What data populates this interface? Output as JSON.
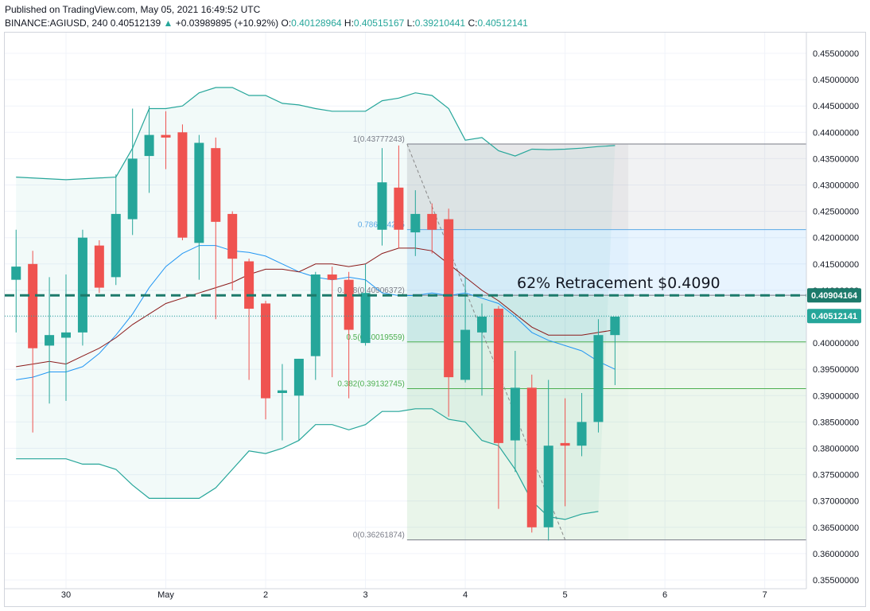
{
  "header": {
    "published": "Published on TradingView.com, May 05, 2021 16:49:52 UTC",
    "symbol": "BINANCE:AGIUSD, 240",
    "last": "0.40512139",
    "arrow": "▲",
    "change": "+0.03989895 (+10.92%)",
    "o_label": "O:",
    "o_value": "0.40128964",
    "h_label": "H:",
    "h_value": "0.40515167",
    "l_label": "L:",
    "l_value": "0.39210441",
    "c_label": "C:",
    "c_value": "0.40512141"
  },
  "chart_data": {
    "type": "candlestick",
    "title": "BINANCE:AGIUSD, 240",
    "x_ticks": [
      {
        "label": "30",
        "t": 0
      },
      {
        "label": "May",
        "t": 6
      },
      {
        "label": "2",
        "t": 12
      },
      {
        "label": "3",
        "t": 18
      },
      {
        "label": "4",
        "t": 24
      },
      {
        "label": "5",
        "t": 30
      },
      {
        "label": "6",
        "t": 36
      },
      {
        "label": "7",
        "t": 42
      }
    ],
    "y_ticks": [
      "0.45500000",
      "0.45000000",
      "0.44500000",
      "0.44000000",
      "0.43500000",
      "0.43000000",
      "0.42500000",
      "0.42000000",
      "0.41500000",
      "0.41000000",
      "0.40500000",
      "0.40000000",
      "0.39500000",
      "0.39000000",
      "0.38500000",
      "0.38000000",
      "0.37500000",
      "0.37000000",
      "0.36500000",
      "0.36000000",
      "0.35500000"
    ],
    "ylim": [
      0.3535,
      0.4575
    ],
    "candles": [
      {
        "t": -3,
        "o": 0.412,
        "h": 0.4215,
        "l": 0.402,
        "c": 0.4145
      },
      {
        "t": -2,
        "o": 0.415,
        "h": 0.4175,
        "l": 0.383,
        "c": 0.399
      },
      {
        "t": -1,
        "o": 0.3995,
        "h": 0.4125,
        "l": 0.3885,
        "c": 0.4015
      },
      {
        "t": 0,
        "o": 0.401,
        "h": 0.413,
        "l": 0.389,
        "c": 0.402
      },
      {
        "t": 1,
        "o": 0.402,
        "h": 0.4215,
        "l": 0.3995,
        "c": 0.42
      },
      {
        "t": 2,
        "o": 0.4185,
        "h": 0.4195,
        "l": 0.4095,
        "c": 0.4105
      },
      {
        "t": 3,
        "o": 0.4125,
        "h": 0.432,
        "l": 0.411,
        "c": 0.4245
      },
      {
        "t": 4,
        "o": 0.4235,
        "h": 0.4445,
        "l": 0.4205,
        "c": 0.435
      },
      {
        "t": 5,
        "o": 0.4355,
        "h": 0.445,
        "l": 0.4285,
        "c": 0.4395
      },
      {
        "t": 6,
        "o": 0.4395,
        "h": 0.444,
        "l": 0.433,
        "c": 0.439
      },
      {
        "t": 7,
        "o": 0.44,
        "h": 0.4415,
        "l": 0.4195,
        "c": 0.42
      },
      {
        "t": 8,
        "o": 0.419,
        "h": 0.4395,
        "l": 0.412,
        "c": 0.438
      },
      {
        "t": 9,
        "o": 0.437,
        "h": 0.439,
        "l": 0.4045,
        "c": 0.423
      },
      {
        "t": 10,
        "o": 0.4245,
        "h": 0.425,
        "l": 0.41,
        "c": 0.416
      },
      {
        "t": 11,
        "o": 0.4155,
        "h": 0.416,
        "l": 0.393,
        "c": 0.4065
      },
      {
        "t": 12,
        "o": 0.4075,
        "h": 0.408,
        "l": 0.3855,
        "c": 0.3895
      },
      {
        "t": 13,
        "o": 0.3905,
        "h": 0.396,
        "l": 0.3815,
        "c": 0.391
      },
      {
        "t": 14,
        "o": 0.39,
        "h": 0.397,
        "l": 0.3815,
        "c": 0.397
      },
      {
        "t": 15,
        "o": 0.3975,
        "h": 0.4135,
        "l": 0.393,
        "c": 0.413
      },
      {
        "t": 16,
        "o": 0.413,
        "h": 0.4145,
        "l": 0.3935,
        "c": 0.412
      },
      {
        "t": 17,
        "o": 0.412,
        "h": 0.4135,
        "l": 0.3895,
        "c": 0.4025
      },
      {
        "t": 18,
        "o": 0.4,
        "h": 0.415,
        "l": 0.3995,
        "c": 0.4095
      },
      {
        "t": 19,
        "o": 0.4215,
        "h": 0.437,
        "l": 0.4185,
        "c": 0.4305
      },
      {
        "t": 20,
        "o": 0.4295,
        "h": 0.4375,
        "l": 0.418,
        "c": 0.4215
      },
      {
        "t": 21,
        "o": 0.421,
        "h": 0.429,
        "l": 0.4165,
        "c": 0.4245
      },
      {
        "t": 22,
        "o": 0.4245,
        "h": 0.4265,
        "l": 0.417,
        "c": 0.4215
      },
      {
        "t": 23,
        "o": 0.4235,
        "h": 0.4255,
        "l": 0.386,
        "c": 0.3935
      },
      {
        "t": 24,
        "o": 0.393,
        "h": 0.4125,
        "l": 0.3925,
        "c": 0.4025
      },
      {
        "t": 25,
        "o": 0.402,
        "h": 0.4075,
        "l": 0.39,
        "c": 0.405
      },
      {
        "t": 26,
        "o": 0.4065,
        "h": 0.407,
        "l": 0.3685,
        "c": 0.381
      },
      {
        "t": 27,
        "o": 0.3815,
        "h": 0.3985,
        "l": 0.3755,
        "c": 0.3915
      },
      {
        "t": 28,
        "o": 0.3915,
        "h": 0.394,
        "l": 0.364,
        "c": 0.365
      },
      {
        "t": 29,
        "o": 0.365,
        "h": 0.393,
        "l": 0.3625,
        "c": 0.3805
      },
      {
        "t": 30,
        "o": 0.381,
        "h": 0.3895,
        "l": 0.369,
        "c": 0.3805
      },
      {
        "t": 31,
        "o": 0.3805,
        "h": 0.3905,
        "l": 0.3785,
        "c": 0.385
      },
      {
        "t": 32,
        "o": 0.385,
        "h": 0.4045,
        "l": 0.383,
        "c": 0.4015
      },
      {
        "t": 33,
        "o": 0.4015,
        "h": 0.405,
        "l": 0.392,
        "c": 0.405
      }
    ],
    "bollinger": {
      "upper": [
        [
          -3,
          0.4315
        ],
        [
          0,
          0.431
        ],
        [
          3,
          0.4315
        ],
        [
          4,
          0.437
        ],
        [
          5,
          0.4445
        ],
        [
          6,
          0.4445
        ],
        [
          7,
          0.445
        ],
        [
          8,
          0.4475
        ],
        [
          9,
          0.4485
        ],
        [
          10,
          0.4485
        ],
        [
          11,
          0.447
        ],
        [
          12,
          0.447
        ],
        [
          13,
          0.4455
        ],
        [
          14,
          0.4452
        ],
        [
          15,
          0.4445
        ],
        [
          16,
          0.444
        ],
        [
          17,
          0.444
        ],
        [
          18,
          0.444
        ],
        [
          19,
          0.446
        ],
        [
          20,
          0.4465
        ],
        [
          21,
          0.4475
        ],
        [
          22,
          0.447
        ],
        [
          23,
          0.4445
        ],
        [
          24,
          0.4385
        ],
        [
          25,
          0.439
        ],
        [
          26,
          0.4365
        ],
        [
          27,
          0.4355
        ],
        [
          28,
          0.4368
        ],
        [
          29,
          0.4367
        ],
        [
          30,
          0.4368
        ],
        [
          31,
          0.437
        ],
        [
          32,
          0.4373
        ],
        [
          33,
          0.4375
        ]
      ],
      "middle": [
        [
          -3,
          0.393
        ],
        [
          -2,
          0.3935
        ],
        [
          -1,
          0.3945
        ],
        [
          0,
          0.3945
        ],
        [
          1,
          0.3955
        ],
        [
          2,
          0.398
        ],
        [
          3,
          0.4015
        ],
        [
          4,
          0.4055
        ],
        [
          5,
          0.4105
        ],
        [
          6,
          0.4145
        ],
        [
          7,
          0.417
        ],
        [
          8,
          0.4185
        ],
        [
          9,
          0.4185
        ],
        [
          10,
          0.4175
        ],
        [
          11,
          0.4172
        ],
        [
          12,
          0.4165
        ],
        [
          13,
          0.415
        ],
        [
          14,
          0.4135
        ],
        [
          15,
          0.4125
        ],
        [
          16,
          0.412
        ],
        [
          17,
          0.4125
        ],
        [
          18,
          0.412
        ],
        [
          19,
          0.4095
        ],
        [
          20,
          0.409
        ],
        [
          21,
          0.409
        ],
        [
          22,
          0.4095
        ],
        [
          23,
          0.409
        ],
        [
          24,
          0.4095
        ],
        [
          25,
          0.4085
        ],
        [
          26,
          0.4075
        ],
        [
          27,
          0.405
        ],
        [
          28,
          0.402
        ],
        [
          29,
          0.4005
        ],
        [
          30,
          0.3995
        ],
        [
          31,
          0.3985
        ],
        [
          32,
          0.3965
        ],
        [
          33,
          0.395
        ]
      ],
      "lower": [
        [
          -3,
          0.378
        ],
        [
          0,
          0.378
        ],
        [
          1,
          0.377
        ],
        [
          2,
          0.377
        ],
        [
          3,
          0.376
        ],
        [
          4,
          0.373
        ],
        [
          5,
          0.3705
        ],
        [
          6,
          0.3705
        ],
        [
          7,
          0.3705
        ],
        [
          8,
          0.3705
        ],
        [
          9,
          0.3725
        ],
        [
          10,
          0.376
        ],
        [
          11,
          0.3795
        ],
        [
          12,
          0.379
        ],
        [
          13,
          0.38
        ],
        [
          14,
          0.3815
        ],
        [
          15,
          0.3845
        ],
        [
          16,
          0.3845
        ],
        [
          17,
          0.3835
        ],
        [
          18,
          0.3845
        ],
        [
          19,
          0.387
        ],
        [
          20,
          0.387
        ],
        [
          21,
          0.3875
        ],
        [
          22,
          0.3875
        ],
        [
          23,
          0.3855
        ],
        [
          24,
          0.385
        ],
        [
          25,
          0.3815
        ],
        [
          26,
          0.3805
        ],
        [
          27,
          0.376
        ],
        [
          28,
          0.37
        ],
        [
          29,
          0.367
        ],
        [
          30,
          0.3665
        ],
        [
          31,
          0.3675
        ],
        [
          32,
          0.368
        ]
      ]
    },
    "ma": [
      [
        -3,
        0.3955
      ],
      [
        -2,
        0.396
      ],
      [
        -1,
        0.3965
      ],
      [
        0,
        0.396
      ],
      [
        1,
        0.3975
      ],
      [
        2,
        0.399
      ],
      [
        3,
        0.401
      ],
      [
        4,
        0.4035
      ],
      [
        5,
        0.4055
      ],
      [
        6,
        0.4075
      ],
      [
        7,
        0.4085
      ],
      [
        8,
        0.4095
      ],
      [
        9,
        0.4105
      ],
      [
        10,
        0.4115
      ],
      [
        11,
        0.413
      ],
      [
        12,
        0.414
      ],
      [
        13,
        0.414
      ],
      [
        14,
        0.4135
      ],
      [
        15,
        0.415
      ],
      [
        16,
        0.415
      ],
      [
        17,
        0.4145
      ],
      [
        18,
        0.415
      ],
      [
        19,
        0.417
      ],
      [
        20,
        0.418
      ],
      [
        21,
        0.418
      ],
      [
        22,
        0.4175
      ],
      [
        23,
        0.415
      ],
      [
        24,
        0.4125
      ],
      [
        25,
        0.41
      ],
      [
        26,
        0.408
      ],
      [
        27,
        0.4055
      ],
      [
        28,
        0.403
      ],
      [
        29,
        0.4015
      ],
      [
        30,
        0.4015
      ],
      [
        31,
        0.4015
      ],
      [
        32,
        0.402
      ],
      [
        33,
        0.4025
      ]
    ],
    "fib": {
      "t_start": 20.5,
      "t_end": 33.8,
      "levels": [
        {
          "ratio": 1,
          "value": 0.43777243,
          "label": "1(0.43777243)",
          "color": "#787b86"
        },
        {
          "ratio": 0.786,
          "value": 0.42152,
          "label": "0.786(0.4215",
          "color": "#5aa9e6"
        },
        {
          "ratio": 0.618,
          "value": 0.40906372,
          "label": "0.618(0.40906372)",
          "color": "#787b86"
        },
        {
          "ratio": 0.5,
          "value": 0.40019559,
          "label": "0.5(0.40019559)",
          "color": "#4caf50"
        },
        {
          "ratio": 0.382,
          "value": 0.39132745,
          "label": "0.382(0.39132745)",
          "color": "#4caf50"
        },
        {
          "ratio": 0,
          "value": 0.36261874,
          "label": "0(0.36261874)",
          "color": "#787b86"
        }
      ],
      "trend_from": [
        20.5,
        0.43777243
      ],
      "trend_to": [
        30.0,
        0.36261874
      ]
    },
    "annotation": "62% Retracement $0.4090",
    "hline_value": 0.40904164,
    "hline_label": "0.40904164",
    "last_price_label": "0.40512141",
    "last_price": 0.40512141,
    "colors": {
      "up": "#26a69a",
      "down": "#ef5350",
      "band": "#26a69a",
      "basis": "#2196f3",
      "ma": "#8b1a1a",
      "hline": "#1c7a6b"
    }
  }
}
